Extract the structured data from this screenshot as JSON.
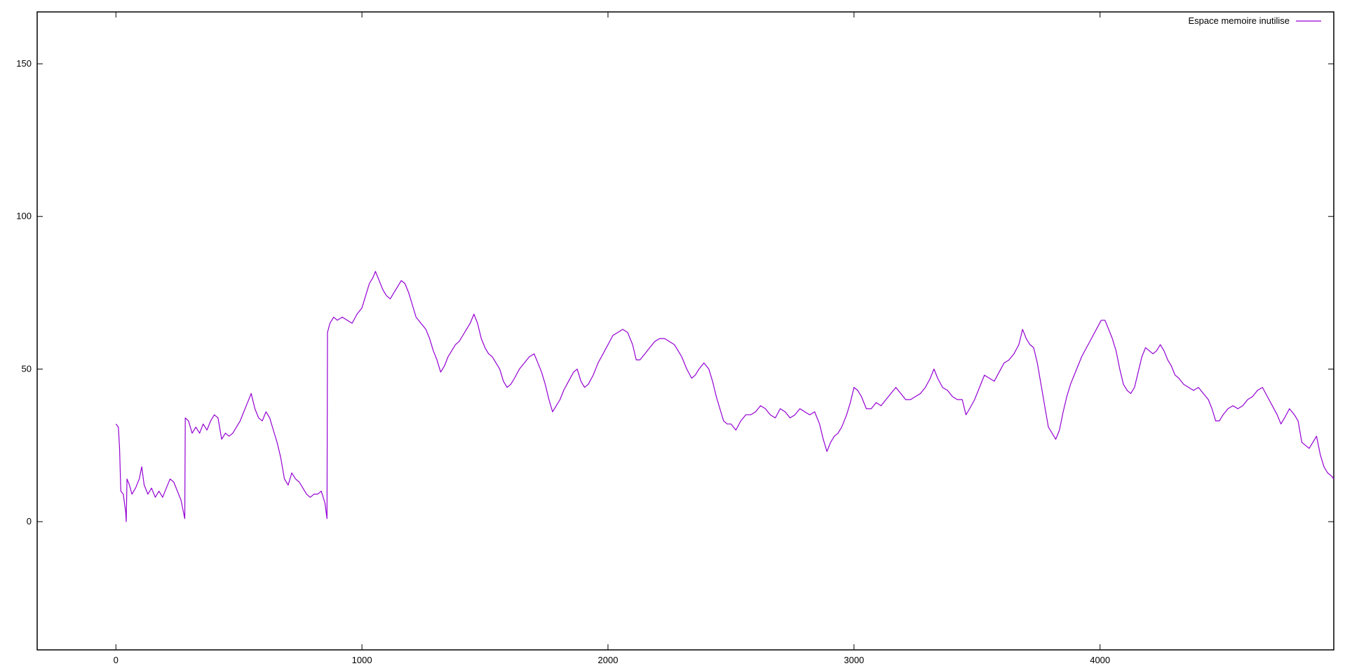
{
  "chart_data": {
    "type": "line",
    "title": "",
    "xlabel": "",
    "ylabel": "",
    "xlim": [
      -320,
      4950
    ],
    "ylim": [
      -42,
      167
    ],
    "xticks": [
      0,
      1000,
      2000,
      3000,
      4000
    ],
    "yticks": [
      0,
      50,
      100,
      150
    ],
    "grid": false,
    "legend_position": "top-right",
    "series": [
      {
        "name": "Espace memoire inutilise",
        "color": "#9400d3",
        "points": [
          [
            0,
            32
          ],
          [
            10,
            31
          ],
          [
            15,
            24
          ],
          [
            20,
            10
          ],
          [
            30,
            9
          ],
          [
            40,
            3
          ],
          [
            42,
            0
          ],
          [
            45,
            14
          ],
          [
            55,
            12
          ],
          [
            65,
            9
          ],
          [
            80,
            11
          ],
          [
            95,
            14
          ],
          [
            105,
            18
          ],
          [
            115,
            12
          ],
          [
            130,
            9
          ],
          [
            145,
            11
          ],
          [
            160,
            8
          ],
          [
            175,
            10
          ],
          [
            190,
            8
          ],
          [
            205,
            11
          ],
          [
            220,
            14
          ],
          [
            235,
            13
          ],
          [
            250,
            10
          ],
          [
            265,
            7
          ],
          [
            280,
            1
          ],
          [
            282,
            34
          ],
          [
            295,
            33
          ],
          [
            310,
            29
          ],
          [
            325,
            31
          ],
          [
            340,
            29
          ],
          [
            355,
            32
          ],
          [
            370,
            30
          ],
          [
            385,
            33
          ],
          [
            400,
            35
          ],
          [
            415,
            34
          ],
          [
            430,
            27
          ],
          [
            445,
            29
          ],
          [
            460,
            28
          ],
          [
            475,
            29
          ],
          [
            490,
            31
          ],
          [
            505,
            33
          ],
          [
            520,
            36
          ],
          [
            535,
            39
          ],
          [
            550,
            42
          ],
          [
            565,
            37
          ],
          [
            580,
            34
          ],
          [
            595,
            33
          ],
          [
            610,
            36
          ],
          [
            625,
            34
          ],
          [
            640,
            30
          ],
          [
            655,
            26
          ],
          [
            670,
            21
          ],
          [
            685,
            14
          ],
          [
            700,
            12
          ],
          [
            715,
            16
          ],
          [
            730,
            14
          ],
          [
            745,
            13
          ],
          [
            760,
            11
          ],
          [
            775,
            9
          ],
          [
            790,
            8
          ],
          [
            805,
            9
          ],
          [
            820,
            9
          ],
          [
            835,
            10
          ],
          [
            850,
            6
          ],
          [
            858,
            1
          ],
          [
            860,
            62
          ],
          [
            870,
            65
          ],
          [
            885,
            67
          ],
          [
            900,
            66
          ],
          [
            920,
            67
          ],
          [
            940,
            66
          ],
          [
            960,
            65
          ],
          [
            980,
            68
          ],
          [
            1000,
            70
          ],
          [
            1015,
            74
          ],
          [
            1030,
            78
          ],
          [
            1045,
            80
          ],
          [
            1055,
            82
          ],
          [
            1070,
            79
          ],
          [
            1085,
            76
          ],
          [
            1100,
            74
          ],
          [
            1115,
            73
          ],
          [
            1130,
            75
          ],
          [
            1145,
            77
          ],
          [
            1160,
            79
          ],
          [
            1175,
            78
          ],
          [
            1190,
            75
          ],
          [
            1205,
            71
          ],
          [
            1220,
            67
          ],
          [
            1240,
            65
          ],
          [
            1260,
            63
          ],
          [
            1275,
            60
          ],
          [
            1290,
            56
          ],
          [
            1305,
            53
          ],
          [
            1320,
            49
          ],
          [
            1335,
            51
          ],
          [
            1350,
            54
          ],
          [
            1365,
            56
          ],
          [
            1380,
            58
          ],
          [
            1395,
            59
          ],
          [
            1410,
            61
          ],
          [
            1425,
            63
          ],
          [
            1440,
            65
          ],
          [
            1455,
            68
          ],
          [
            1470,
            65
          ],
          [
            1485,
            60
          ],
          [
            1500,
            57
          ],
          [
            1515,
            55
          ],
          [
            1530,
            54
          ],
          [
            1545,
            52
          ],
          [
            1560,
            50
          ],
          [
            1575,
            46
          ],
          [
            1590,
            44
          ],
          [
            1605,
            45
          ],
          [
            1620,
            47
          ],
          [
            1640,
            50
          ],
          [
            1660,
            52
          ],
          [
            1680,
            54
          ],
          [
            1700,
            55
          ],
          [
            1715,
            52
          ],
          [
            1730,
            49
          ],
          [
            1745,
            45
          ],
          [
            1760,
            40
          ],
          [
            1775,
            36
          ],
          [
            1790,
            38
          ],
          [
            1805,
            40
          ],
          [
            1820,
            43
          ],
          [
            1840,
            46
          ],
          [
            1860,
            49
          ],
          [
            1875,
            50
          ],
          [
            1890,
            46
          ],
          [
            1905,
            44
          ],
          [
            1920,
            45
          ],
          [
            1940,
            48
          ],
          [
            1960,
            52
          ],
          [
            1980,
            55
          ],
          [
            2000,
            58
          ],
          [
            2020,
            61
          ],
          [
            2040,
            62
          ],
          [
            2060,
            63
          ],
          [
            2080,
            62
          ],
          [
            2100,
            58
          ],
          [
            2115,
            53
          ],
          [
            2130,
            53
          ],
          [
            2150,
            55
          ],
          [
            2170,
            57
          ],
          [
            2190,
            59
          ],
          [
            2210,
            60
          ],
          [
            2230,
            60
          ],
          [
            2250,
            59
          ],
          [
            2270,
            58
          ],
          [
            2285,
            56
          ],
          [
            2300,
            54
          ],
          [
            2320,
            50
          ],
          [
            2340,
            47
          ],
          [
            2355,
            48
          ],
          [
            2370,
            50
          ],
          [
            2390,
            52
          ],
          [
            2410,
            50
          ],
          [
            2425,
            46
          ],
          [
            2440,
            41
          ],
          [
            2455,
            37
          ],
          [
            2470,
            33
          ],
          [
            2485,
            32
          ],
          [
            2500,
            32
          ],
          [
            2520,
            30
          ],
          [
            2540,
            33
          ],
          [
            2560,
            35
          ],
          [
            2580,
            35
          ],
          [
            2600,
            36
          ],
          [
            2620,
            38
          ],
          [
            2640,
            37
          ],
          [
            2660,
            35
          ],
          [
            2680,
            34
          ],
          [
            2700,
            37
          ],
          [
            2720,
            36
          ],
          [
            2740,
            34
          ],
          [
            2760,
            35
          ],
          [
            2780,
            37
          ],
          [
            2800,
            36
          ],
          [
            2820,
            35
          ],
          [
            2840,
            36
          ],
          [
            2860,
            32
          ],
          [
            2875,
            27
          ],
          [
            2890,
            23
          ],
          [
            2905,
            26
          ],
          [
            2920,
            28
          ],
          [
            2935,
            29
          ],
          [
            2950,
            31
          ],
          [
            2970,
            35
          ],
          [
            2985,
            39
          ],
          [
            3000,
            44
          ],
          [
            3015,
            43
          ],
          [
            3030,
            41
          ],
          [
            3050,
            37
          ],
          [
            3070,
            37
          ],
          [
            3090,
            39
          ],
          [
            3110,
            38
          ],
          [
            3130,
            40
          ],
          [
            3150,
            42
          ],
          [
            3170,
            44
          ],
          [
            3190,
            42
          ],
          [
            3210,
            40
          ],
          [
            3230,
            40
          ],
          [
            3250,
            41
          ],
          [
            3270,
            42
          ],
          [
            3290,
            44
          ],
          [
            3310,
            47
          ],
          [
            3325,
            50
          ],
          [
            3340,
            47
          ],
          [
            3360,
            44
          ],
          [
            3380,
            43
          ],
          [
            3400,
            41
          ],
          [
            3420,
            40
          ],
          [
            3440,
            40
          ],
          [
            3455,
            35
          ],
          [
            3470,
            37
          ],
          [
            3490,
            40
          ],
          [
            3510,
            44
          ],
          [
            3530,
            48
          ],
          [
            3550,
            47
          ],
          [
            3570,
            46
          ],
          [
            3590,
            49
          ],
          [
            3610,
            52
          ],
          [
            3630,
            53
          ],
          [
            3650,
            55
          ],
          [
            3670,
            58
          ],
          [
            3685,
            63
          ],
          [
            3700,
            60
          ],
          [
            3715,
            58
          ],
          [
            3730,
            57
          ],
          [
            3745,
            52
          ],
          [
            3760,
            45
          ],
          [
            3775,
            38
          ],
          [
            3790,
            31
          ],
          [
            3805,
            29
          ],
          [
            3820,
            27
          ],
          [
            3835,
            30
          ],
          [
            3850,
            36
          ],
          [
            3865,
            41
          ],
          [
            3880,
            45
          ],
          [
            3895,
            48
          ],
          [
            3910,
            51
          ],
          [
            3925,
            54
          ],
          [
            3945,
            57
          ],
          [
            3965,
            60
          ],
          [
            3985,
            63
          ],
          [
            4005,
            66
          ],
          [
            4020,
            66
          ],
          [
            4035,
            63
          ],
          [
            4050,
            60
          ],
          [
            4065,
            56
          ],
          [
            4080,
            50
          ],
          [
            4095,
            45
          ],
          [
            4110,
            43
          ],
          [
            4125,
            42
          ],
          [
            4140,
            44
          ],
          [
            4155,
            49
          ],
          [
            4170,
            54
          ],
          [
            4185,
            57
          ],
          [
            4200,
            56
          ],
          [
            4215,
            55
          ],
          [
            4230,
            56
          ],
          [
            4245,
            58
          ],
          [
            4260,
            56
          ],
          [
            4275,
            53
          ],
          [
            4290,
            51
          ],
          [
            4305,
            48
          ],
          [
            4320,
            47
          ],
          [
            4340,
            45
          ],
          [
            4360,
            44
          ],
          [
            4380,
            43
          ],
          [
            4400,
            44
          ],
          [
            4420,
            42
          ],
          [
            4440,
            40
          ],
          [
            4455,
            37
          ],
          [
            4470,
            33
          ],
          [
            4485,
            33
          ],
          [
            4500,
            35
          ],
          [
            4520,
            37
          ],
          [
            4540,
            38
          ],
          [
            4560,
            37
          ],
          [
            4580,
            38
          ],
          [
            4600,
            40
          ],
          [
            4620,
            41
          ],
          [
            4640,
            43
          ],
          [
            4660,
            44
          ],
          [
            4680,
            41
          ],
          [
            4700,
            38
          ],
          [
            4720,
            35
          ],
          [
            4735,
            32
          ],
          [
            4750,
            34
          ],
          [
            4770,
            37
          ],
          [
            4790,
            35
          ],
          [
            4805,
            33
          ],
          [
            4820,
            26
          ],
          [
            4835,
            25
          ],
          [
            4850,
            24
          ],
          [
            4865,
            26
          ],
          [
            4880,
            28
          ],
          [
            4895,
            22
          ],
          [
            4910,
            18
          ],
          [
            4925,
            16
          ],
          [
            4940,
            15
          ],
          [
            4950,
            14
          ]
        ]
      }
    ]
  }
}
